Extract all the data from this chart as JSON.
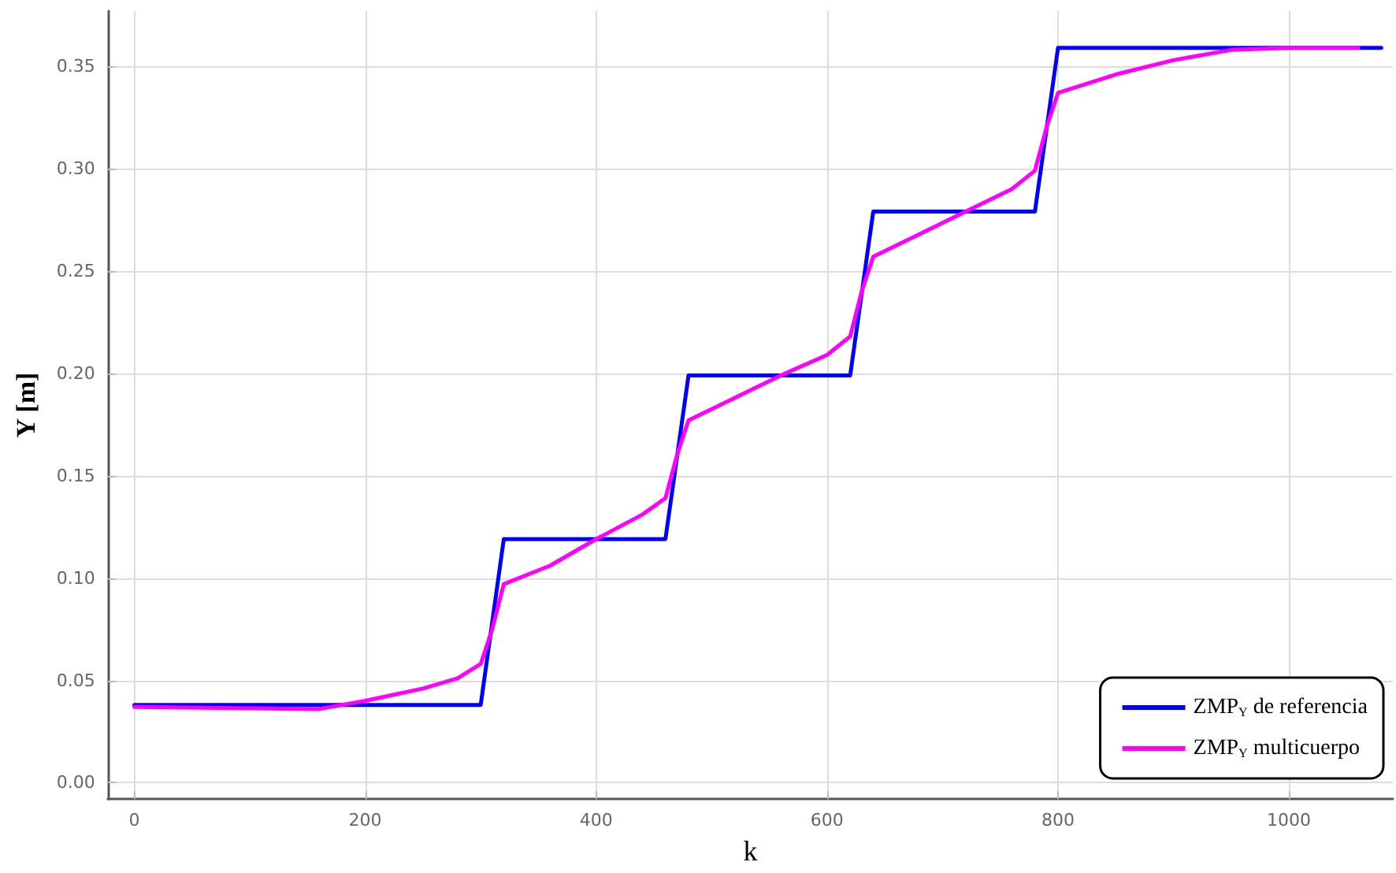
{
  "chart_data": {
    "type": "line",
    "xlabel": "k",
    "ylabel": "Y [m]",
    "xlim": [
      -23,
      1090
    ],
    "xticks": [
      0,
      200,
      400,
      600,
      800,
      1000
    ],
    "ylim": [
      -0.008,
      0.377
    ],
    "yticks": [
      {
        "value": 0,
        "label": "0.00"
      },
      0.05,
      {
        "value": 0.1,
        "label": "0.10"
      },
      0.15,
      {
        "value": 0.2,
        "label": "0.20"
      },
      0.25,
      {
        "value": 0.3,
        "label": "0.30"
      },
      0.35
    ],
    "grid": true,
    "legend": "bottom right",
    "marker": "none",
    "line_style": "solid",
    "series": [
      {
        "name": "ZMP$_{Y}$ de referencia",
        "color": "#0000ff",
        "x": [
          0,
          300,
          320,
          460,
          480,
          620,
          640,
          780,
          800,
          1080
        ],
        "values": [
          0.038,
          0.038,
          0.119,
          0.119,
          0.199,
          0.199,
          0.279,
          0.279,
          0.359,
          0.359
        ]
      },
      {
        "name": "ZMP$_{Y}$ multicuerpo",
        "color": "#ff00ff",
        "x": [
          0,
          160,
          200,
          250,
          280,
          300,
          310,
          320,
          360,
          400,
          440,
          460,
          470,
          480,
          520,
          560,
          600,
          620,
          630,
          640,
          680,
          720,
          760,
          780,
          790,
          800,
          850,
          900,
          950,
          1000,
          1060
        ],
        "values": [
          0.037,
          0.036,
          0.04,
          0.046,
          0.051,
          0.058,
          0.075,
          0.097,
          0.106,
          0.119,
          0.131,
          0.139,
          0.16,
          0.177,
          0.188,
          0.199,
          0.209,
          0.218,
          0.24,
          0.257,
          0.268,
          0.279,
          0.29,
          0.299,
          0.32,
          0.337,
          0.346,
          0.353,
          0.358,
          0.359,
          0.359
        ]
      }
    ]
  }
}
